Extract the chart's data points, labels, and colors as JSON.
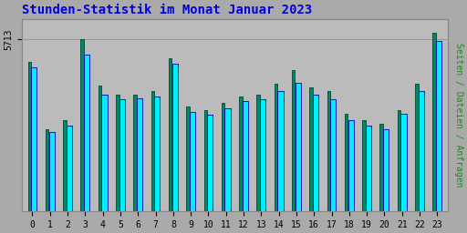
{
  "title": "Stunden-Statistik im Monat Januar 2023",
  "title_color": "#0000dd",
  "ylabel_right": "Seiten / Dateien / Anfragen",
  "ylabel_right_color": "#228822",
  "ytick_label": "5713",
  "background_color": "#aaaaaa",
  "plot_bg_color": "#bbbbbb",
  "border_color": "#888888",
  "bar_cyan_color": "#00eeff",
  "bar_cyan_edge": "#0000aa",
  "bar_teal_color": "#008866",
  "bar_teal_edge": "#004433",
  "categories": [
    0,
    1,
    2,
    3,
    4,
    5,
    6,
    7,
    8,
    9,
    10,
    11,
    12,
    13,
    14,
    15,
    16,
    17,
    18,
    19,
    20,
    21,
    22,
    23
  ],
  "bar_cyan_values": [
    84,
    46,
    50,
    91,
    68,
    65,
    66,
    67,
    86,
    58,
    56,
    60,
    64,
    65,
    70,
    75,
    68,
    65,
    53,
    50,
    48,
    57,
    70,
    99
  ],
  "bar_teal_values": [
    87,
    48,
    53,
    100,
    73,
    68,
    68,
    70,
    89,
    61,
    59,
    63,
    67,
    68,
    74,
    82,
    72,
    70,
    57,
    53,
    51,
    59,
    74,
    104
  ],
  "ylim": [
    0,
    112
  ],
  "ytick_pos": 100,
  "figsize": [
    5.12,
    2.56
  ],
  "dpi": 100,
  "grid_color": "#999999",
  "grid_linewidth": 0.8
}
